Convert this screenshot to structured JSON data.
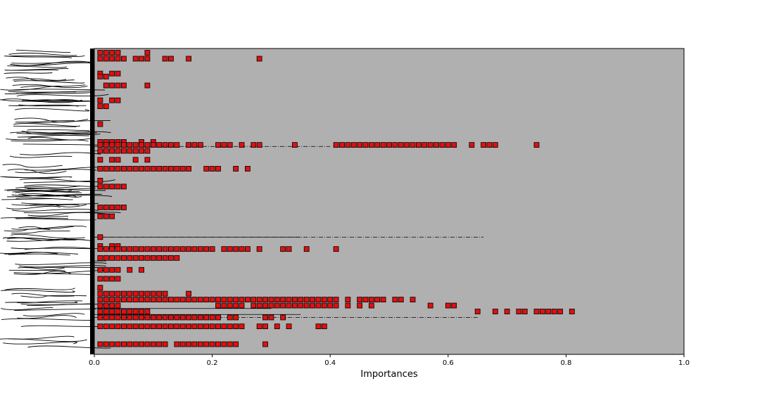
{
  "chart_data": {
    "type": "scatter",
    "title": "",
    "xlabel": "Importances",
    "ylabel": "",
    "xlim": [
      0.0,
      1.0
    ],
    "xticks": [
      "0.0",
      "0.2",
      "0.4",
      "0.6",
      "0.8",
      "1.0"
    ],
    "grid": false,
    "legend": "none",
    "marker": "square",
    "colors": {
      "background": "#b0b0b0",
      "marker_fill": "#e01010",
      "marker_edge": "#000000",
      "line": "#000000"
    },
    "note_y_axis": "y-axis feature labels are heavily overlapped and illegible",
    "rows": [
      {
        "y": 0.0,
        "x": [
          0.01,
          0.02,
          0.03,
          0.04,
          0.09
        ]
      },
      {
        "y": 0.02,
        "x": [
          0.01,
          0.02,
          0.03,
          0.04,
          0.05,
          0.07,
          0.08,
          0.09,
          0.12,
          0.13,
          0.16,
          0.28
        ]
      },
      {
        "y": 0.07,
        "x": [
          0.01,
          0.03,
          0.04
        ]
      },
      {
        "y": 0.08,
        "x": [
          0.01,
          0.02
        ]
      },
      {
        "y": 0.11,
        "x": [
          0.02,
          0.03,
          0.04,
          0.05,
          0.09
        ]
      },
      {
        "y": 0.16,
        "x": [
          0.01,
          0.03,
          0.04
        ]
      },
      {
        "y": 0.18,
        "x": [
          0.01,
          0.02
        ]
      },
      {
        "y": 0.24,
        "x": [
          0.01
        ]
      },
      {
        "y": 0.3,
        "x": [
          0.01,
          0.02,
          0.03,
          0.04,
          0.05,
          0.08,
          0.1
        ]
      },
      {
        "y": 0.31,
        "x": [
          0.01,
          0.02,
          0.03,
          0.04,
          0.05,
          0.06,
          0.07,
          0.08,
          0.09,
          0.1,
          0.11,
          0.12,
          0.13,
          0.14,
          0.16,
          0.17,
          0.18,
          0.21,
          0.22,
          0.23,
          0.25,
          0.27,
          0.28,
          0.34,
          0.41,
          0.42,
          0.43,
          0.44,
          0.45,
          0.46,
          0.47,
          0.48,
          0.49,
          0.5,
          0.51,
          0.52,
          0.53,
          0.54,
          0.55,
          0.56,
          0.57,
          0.58,
          0.59,
          0.6,
          0.61,
          0.64,
          0.66,
          0.67,
          0.68,
          0.75
        ]
      },
      {
        "y": 0.33,
        "x": [
          0.01,
          0.02,
          0.03,
          0.04,
          0.05,
          0.06,
          0.07,
          0.08,
          0.09
        ]
      },
      {
        "y": 0.36,
        "x": [
          0.01,
          0.03,
          0.04,
          0.07,
          0.09
        ]
      },
      {
        "y": 0.39,
        "x": [
          0.01,
          0.02,
          0.03,
          0.04,
          0.05,
          0.06,
          0.07,
          0.08,
          0.09,
          0.1,
          0.11,
          0.12,
          0.13,
          0.14,
          0.15,
          0.16,
          0.19,
          0.2,
          0.21,
          0.24,
          0.26
        ]
      },
      {
        "y": 0.43,
        "x": [
          0.01
        ]
      },
      {
        "y": 0.45,
        "x": [
          0.01,
          0.02,
          0.03,
          0.04,
          0.05
        ]
      },
      {
        "y": 0.52,
        "x": [
          0.01,
          0.02,
          0.03,
          0.04,
          0.05
        ]
      },
      {
        "y": 0.55,
        "x": [
          0.01,
          0.02,
          0.03
        ]
      },
      {
        "y": 0.62,
        "x": [
          0.01
        ]
      },
      {
        "y": 0.65,
        "x": [
          0.01,
          0.03,
          0.04
        ]
      },
      {
        "y": 0.66,
        "x": [
          0.01,
          0.02,
          0.03,
          0.04,
          0.05,
          0.06,
          0.07,
          0.08,
          0.09,
          0.1,
          0.11,
          0.12,
          0.13,
          0.14,
          0.15,
          0.16,
          0.17,
          0.18,
          0.19,
          0.2,
          0.22,
          0.23,
          0.24,
          0.25,
          0.26,
          0.28,
          0.32,
          0.33,
          0.36,
          0.41
        ]
      },
      {
        "y": 0.69,
        "x": [
          0.01,
          0.02,
          0.03,
          0.04,
          0.05,
          0.06,
          0.07,
          0.08,
          0.09,
          0.1,
          0.11,
          0.12,
          0.13,
          0.14
        ]
      },
      {
        "y": 0.73,
        "x": [
          0.01,
          0.02,
          0.03,
          0.04,
          0.06,
          0.08
        ]
      },
      {
        "y": 0.76,
        "x": [
          0.01,
          0.02,
          0.03,
          0.04
        ]
      },
      {
        "y": 0.79,
        "x": [
          0.01
        ]
      },
      {
        "y": 0.81,
        "x": [
          0.01,
          0.02,
          0.03,
          0.04,
          0.05,
          0.06,
          0.07,
          0.08,
          0.09,
          0.1,
          0.11,
          0.12,
          0.16
        ]
      },
      {
        "y": 0.83,
        "x": [
          0.01,
          0.02,
          0.03,
          0.04,
          0.05,
          0.06,
          0.07,
          0.08,
          0.09,
          0.1,
          0.11,
          0.12,
          0.13,
          0.14,
          0.15,
          0.16,
          0.17,
          0.18,
          0.19,
          0.2,
          0.21,
          0.22,
          0.23,
          0.24,
          0.25,
          0.26,
          0.27,
          0.28,
          0.29,
          0.3,
          0.31,
          0.32,
          0.33,
          0.34,
          0.35,
          0.36,
          0.37,
          0.38,
          0.39,
          0.4,
          0.41,
          0.43,
          0.45,
          0.46,
          0.47,
          0.48,
          0.49,
          0.51,
          0.52,
          0.54
        ]
      },
      {
        "y": 0.85,
        "x": [
          0.01,
          0.02,
          0.03,
          0.04,
          0.21,
          0.22,
          0.23,
          0.24,
          0.25,
          0.27,
          0.28,
          0.29,
          0.3,
          0.31,
          0.32,
          0.33,
          0.34,
          0.35,
          0.36,
          0.37,
          0.38,
          0.39,
          0.4,
          0.41,
          0.43,
          0.45,
          0.47,
          0.57,
          0.6,
          0.61
        ]
      },
      {
        "y": 0.87,
        "x": [
          0.01,
          0.02,
          0.03,
          0.04,
          0.05,
          0.06,
          0.07,
          0.08,
          0.09,
          0.65,
          0.68,
          0.7,
          0.72,
          0.73,
          0.75,
          0.76,
          0.77,
          0.78,
          0.79,
          0.81
        ]
      },
      {
        "y": 0.89,
        "x": [
          0.01,
          0.02,
          0.03,
          0.04,
          0.05,
          0.06,
          0.07,
          0.08,
          0.09,
          0.1,
          0.11,
          0.12,
          0.13,
          0.14,
          0.15,
          0.16,
          0.17,
          0.18,
          0.19,
          0.2,
          0.21,
          0.23,
          0.24,
          0.29,
          0.3,
          0.32
        ]
      },
      {
        "y": 0.92,
        "x": [
          0.01,
          0.02,
          0.03,
          0.04,
          0.05,
          0.06,
          0.07,
          0.08,
          0.09,
          0.1,
          0.11,
          0.12,
          0.13,
          0.14,
          0.15,
          0.16,
          0.17,
          0.18,
          0.19,
          0.2,
          0.21,
          0.22,
          0.23,
          0.24,
          0.25,
          0.28,
          0.29,
          0.31,
          0.33,
          0.38,
          0.39
        ]
      },
      {
        "y": 0.98,
        "x": [
          0.01,
          0.02,
          0.03,
          0.04,
          0.05,
          0.06,
          0.07,
          0.08,
          0.09,
          0.1,
          0.11,
          0.12,
          0.14,
          0.15,
          0.16,
          0.17,
          0.18,
          0.19,
          0.2,
          0.21,
          0.22,
          0.23,
          0.24,
          0.29
        ]
      }
    ],
    "dashdot_lines": [
      {
        "y": 0.315,
        "x1": 0.0,
        "x2": 0.4
      },
      {
        "y": 0.62,
        "x1": 0.0,
        "x2": 0.66
      },
      {
        "y": 0.89,
        "x1": 0.0,
        "x2": 0.65
      }
    ],
    "solid_lines": [
      {
        "y": 0.62,
        "x1": 0.0,
        "x2": 0.35
      },
      {
        "y": 0.86,
        "x1": 0.0,
        "x2": 0.3
      },
      {
        "y": 0.88,
        "x1": 0.0,
        "x2": 0.35
      },
      {
        "y": 0.7,
        "x1": 0.0,
        "x2": 0.02
      },
      {
        "y": 0.33,
        "x1": 0.0,
        "x2": 0.02
      }
    ]
  }
}
